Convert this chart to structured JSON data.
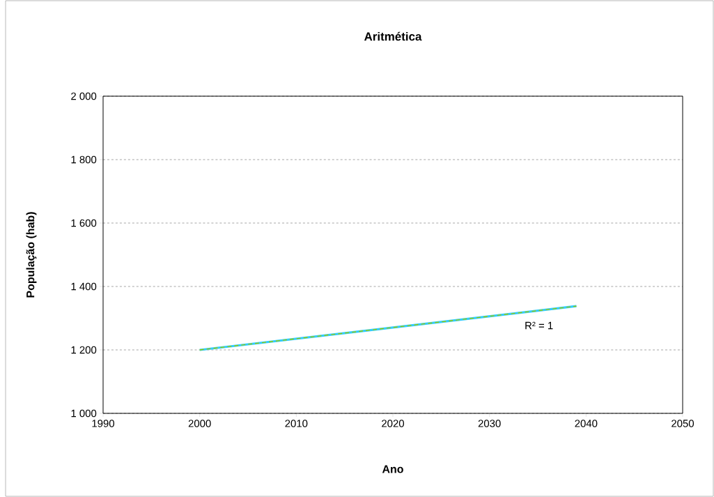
{
  "chart_data": {
    "type": "line",
    "title": "Aritmética",
    "xlabel": "Ano",
    "ylabel": "População (hab)",
    "series": [
      {
        "color": "#33ccff",
        "line_style": "solid",
        "values": [
          1200,
          1338
        ]
      },
      {
        "type": "line",
        "color": "#99cc00",
        "line_style": "dashed",
        "x": [
          2000,
          2039
        ],
        "values": [
          1200,
          1338
        ]
      }
    ],
    "x": [
      2000,
      2039
    ],
    "xlim": [
      1990,
      2050
    ],
    "xticks": [
      1990,
      2000,
      2010,
      2020,
      2030,
      2040,
      2050
    ],
    "ylim": [
      1000,
      2000
    ],
    "yticks": [
      {
        "value": 1000,
        "label": "1 000"
      },
      {
        "value": 1200,
        "label": "1 200"
      },
      {
        "value": 1400,
        "label": "1 400"
      },
      {
        "value": 1600,
        "label": "1 600"
      },
      {
        "value": 1800,
        "label": "1 800"
      },
      {
        "value": 2000,
        "label": "2 000"
      }
    ],
    "grid": "y",
    "legend": false,
    "marker": "none",
    "annotations": [
      "R² = 1"
    ]
  }
}
